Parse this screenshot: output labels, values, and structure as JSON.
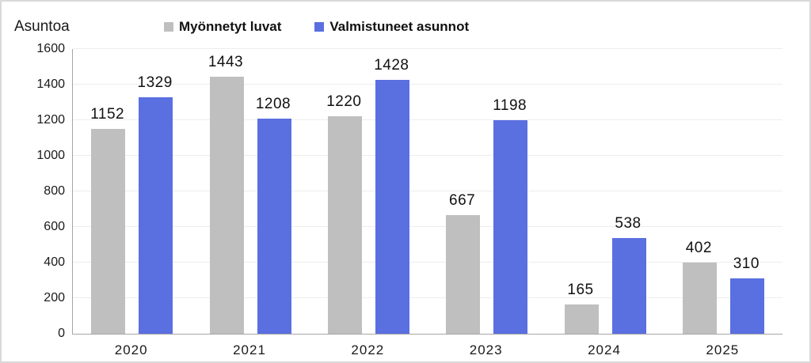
{
  "header": {
    "unit_label": "Asuntoa"
  },
  "chart_data": {
    "type": "bar",
    "title": "",
    "ylabel": "Asuntoa",
    "xlabel": "",
    "categories": [
      "2020",
      "2021",
      "2022",
      "2023",
      "2024",
      "2025"
    ],
    "series": [
      {
        "name": "Myönnetyt luvat",
        "color": "#bfbfbf",
        "values": [
          1152,
          1443,
          1220,
          667,
          165,
          402
        ]
      },
      {
        "name": "Valmistuneet asunnot",
        "color": "#5a6fe0",
        "values": [
          1329,
          1208,
          1428,
          1198,
          538,
          310
        ]
      }
    ],
    "ylim": [
      0,
      1600
    ],
    "ytick_step": 200,
    "grid": true,
    "legend_position": "top",
    "value_labels_shown": true
  },
  "colors": {
    "axis_line": "#a6a6a6",
    "gridline": "#ededed",
    "text": "#1a1a1a",
    "frame_border": "#d9d9d9",
    "background": "#ffffff"
  }
}
